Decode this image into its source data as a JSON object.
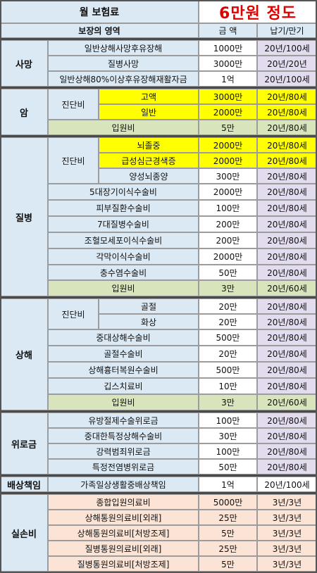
{
  "header": {
    "title": "월 보험료",
    "premium": "6만원 정도",
    "col_area": "보장의 영역",
    "col_amount": "금 액",
    "col_period": "납기/만기"
  },
  "categories": {
    "death": "사망",
    "cancer": "암",
    "disease": "질병",
    "injury": "상해",
    "consolation": "위로금",
    "liability": "배상책임",
    "medical": "실손비"
  },
  "sub": {
    "diagnosis": "진단비"
  },
  "rows": {
    "r1": {
      "name": "일반상해사망후유장해",
      "amount": "1000만",
      "period": "20년/100세"
    },
    "r2": {
      "name": "질병사망",
      "amount": "3000만",
      "period": "20년/20년"
    },
    "r3": {
      "name": "일반상해80%이상후유장해재활자금",
      "amount": "1억",
      "period": "20년/100세"
    },
    "r4": {
      "name": "고액",
      "amount": "3000만",
      "period": "20년/80세"
    },
    "r5": {
      "name": "일반",
      "amount": "2000만",
      "period": "20년/80세"
    },
    "r6": {
      "name": "입원비",
      "amount": "5만",
      "period": "20년/80세"
    },
    "r7": {
      "name": "뇌졸중",
      "amount": "2000만",
      "period": "20년/80세"
    },
    "r8": {
      "name": "급성심근경색증",
      "amount": "2000만",
      "period": "20년/80세"
    },
    "r9": {
      "name": "양성뇌종양",
      "amount": "300만",
      "period": "20년/80세"
    },
    "r10": {
      "name": "5대장기이식수술비",
      "amount": "2000만",
      "period": "20년/80세"
    },
    "r11": {
      "name": "피부질환수술비",
      "amount": "100만",
      "period": "20년/80세"
    },
    "r12": {
      "name": "7대질병수술비",
      "amount": "200만",
      "period": "20년/80세"
    },
    "r13": {
      "name": "조혈모세포이식수술비",
      "amount": "200만",
      "period": "20년/80세"
    },
    "r14": {
      "name": "각막이식수술비",
      "amount": "2000만",
      "period": "20년/80세"
    },
    "r15": {
      "name": "충수염수술비",
      "amount": "50만",
      "period": "20년/80세"
    },
    "r16": {
      "name": "입원비",
      "amount": "3만",
      "period": "20년/60세"
    },
    "r17": {
      "name": "골절",
      "amount": "20만",
      "period": "20년/80세"
    },
    "r18": {
      "name": "화상",
      "amount": "20만",
      "period": "20년/80세"
    },
    "r19": {
      "name": "중대상해수술비",
      "amount": "500만",
      "period": "20년/80세"
    },
    "r20": {
      "name": "골절수술비",
      "amount": "20만",
      "period": "20년/80세"
    },
    "r21": {
      "name": "상해흉터복원수술비",
      "amount": "500만",
      "period": "20년/80세"
    },
    "r22": {
      "name": "깁스치료비",
      "amount": "10만",
      "period": "20년/80세"
    },
    "r23": {
      "name": "입원비",
      "amount": "3만",
      "period": "20년/60세"
    },
    "r24": {
      "name": "유방절제수술위로금",
      "amount": "100만",
      "period": "20년/80세"
    },
    "r25": {
      "name": "중대한특정상해수술비",
      "amount": "30만",
      "period": "20년/80세"
    },
    "r26": {
      "name": "강력범죄위로금",
      "amount": "100만",
      "period": "20년/80세"
    },
    "r27": {
      "name": "특정전염병위로금",
      "amount": "50만",
      "period": "20년/80세"
    },
    "r28": {
      "name": "가족일상생활중배상책임",
      "amount": "1억",
      "period": "20년/100세"
    },
    "r29": {
      "name": "종합입원의료비",
      "amount": "5000만",
      "period": "3년/3년"
    },
    "r30": {
      "name": "상해통원의료비[외래]",
      "amount": "25만",
      "period": "3년/3년"
    },
    "r31": {
      "name": "상해통원의료비[처방조제]",
      "amount": "5만",
      "period": "3년/3년"
    },
    "r32": {
      "name": "질병통원의료비[외래]",
      "amount": "25만",
      "period": "3년/3년"
    },
    "r33": {
      "name": "질병통원의료비[처방조제]",
      "amount": "5만",
      "period": "3년/3년"
    }
  },
  "colors": {
    "header_blue": "#dbe9f4",
    "lavender": "#e3dcef",
    "highlight_yellow": "#ffff00",
    "green": "#d8e4bc",
    "peach": "#fbe4d5",
    "title_red": "#e00000"
  }
}
